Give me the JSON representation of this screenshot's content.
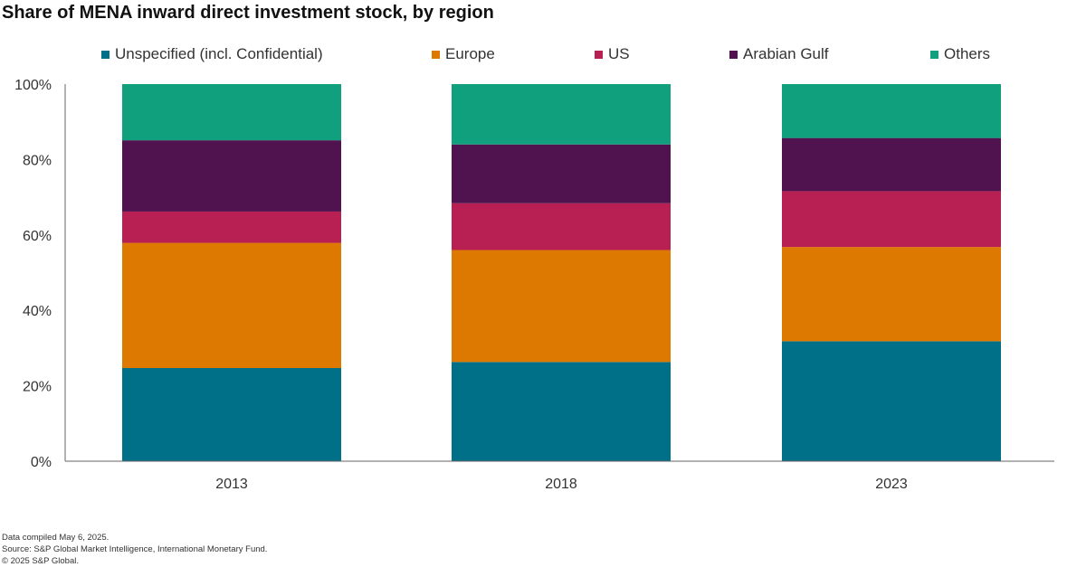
{
  "title": "Share of MENA inward direct investment stock, by region",
  "chart_data": {
    "type": "bar",
    "stacked": true,
    "categories": [
      "2013",
      "2018",
      "2023"
    ],
    "series": [
      {
        "name": "Unspecified (incl. Confidential)",
        "color": "#006f88",
        "values": [
          24.7,
          26.3,
          31.8
        ]
      },
      {
        "name": "Europe",
        "color": "#dd7800",
        "values": [
          33.2,
          29.7,
          25.0
        ]
      },
      {
        "name": "US",
        "color": "#b81f52",
        "values": [
          8.3,
          12.4,
          14.8
        ]
      },
      {
        "name": "Arabian Gulf",
        "color": "#501350",
        "values": [
          18.9,
          15.6,
          14.1
        ]
      },
      {
        "name": "Others",
        "color": "#10a07e",
        "values": [
          14.9,
          16.0,
          14.3
        ]
      }
    ],
    "y_ticks": [
      "0%",
      "20%",
      "40%",
      "60%",
      "80%",
      "100%"
    ],
    "ylim": [
      0,
      100
    ],
    "xlabel": "",
    "ylabel": "",
    "legend_position": "top",
    "grid": false
  },
  "footer": {
    "line1": "Data compiled May 6, 2025.",
    "line2": "Source: S&P Global Market Intelligence, International Monetary Fund.",
    "line3": "© 2025 S&P Global."
  }
}
